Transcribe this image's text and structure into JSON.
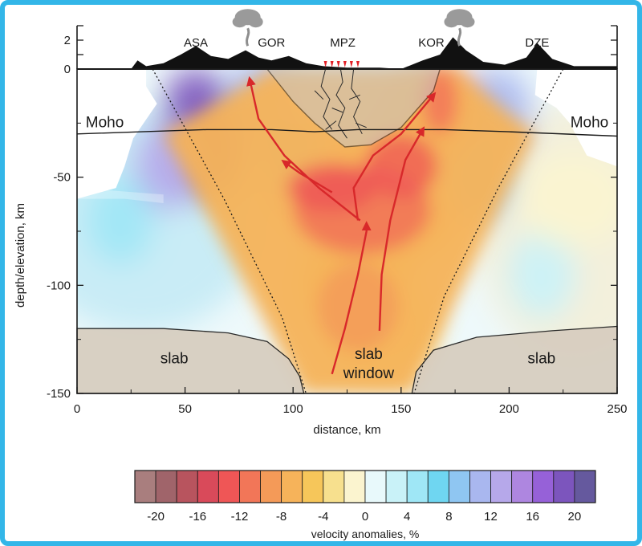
{
  "chart_data": {
    "type": "heatmap",
    "title": "",
    "xlabel": "distance, km",
    "ylabel": "depth/elevation, km",
    "xlim": [
      0,
      250
    ],
    "ylim": [
      -150,
      3
    ],
    "x_ticks": [
      0,
      50,
      100,
      150,
      200,
      250
    ],
    "y_ticks": [
      0,
      -50,
      -100,
      -150
    ],
    "topo_ticks": [
      0,
      2
    ],
    "stations": [
      {
        "name": "ASA",
        "x": 55
      },
      {
        "name": "GOR",
        "x": 90
      },
      {
        "name": "MPZ",
        "x": 123
      },
      {
        "name": "KOR",
        "x": 164
      },
      {
        "name": "DZE",
        "x": 213
      }
    ],
    "volcanoes": [
      {
        "x": 79
      },
      {
        "x": 177
      }
    ],
    "region_labels": {
      "moho_left": "Moho",
      "moho_right": "Moho",
      "slab_left": "slab",
      "slab_right": "slab",
      "window_line1": "slab",
      "window_line2": "window"
    },
    "moho_depth": [
      [
        0,
        -30
      ],
      [
        30,
        -29
      ],
      [
        60,
        -28
      ],
      [
        90,
        -28
      ],
      [
        110,
        -29
      ],
      [
        130,
        -28
      ],
      [
        150,
        -28
      ],
      [
        170,
        -28
      ],
      [
        200,
        -29
      ],
      [
        250,
        -31
      ]
    ],
    "slab_top": [
      [
        0,
        -120
      ],
      [
        40,
        -120
      ],
      [
        70,
        -122
      ],
      [
        88,
        -126
      ],
      [
        98,
        -134
      ],
      [
        103,
        -142
      ],
      [
        105,
        -150
      ],
      [
        155,
        -150
      ],
      [
        157,
        -140
      ],
      [
        165,
        -130
      ],
      [
        185,
        -124
      ],
      [
        220,
        -121
      ],
      [
        250,
        -119
      ]
    ],
    "colorbar": {
      "label": "velocity anomalies, %",
      "tick_labels": [
        "-20",
        "-16",
        "-12",
        "-8",
        "-4",
        "0",
        "4",
        "8",
        "12",
        "16",
        "20"
      ],
      "tick_values": [
        -20,
        -16,
        -12,
        -8,
        -4,
        0,
        4,
        8,
        12,
        16,
        20
      ],
      "range": [
        -22,
        22
      ],
      "step": 2,
      "colors": [
        "#a97e7e",
        "#a0646a",
        "#b8545e",
        "#d94a5a",
        "#ef5656",
        "#f27658",
        "#f49a58",
        "#f6b35a",
        "#f6c65a",
        "#f7e08e",
        "#fbf4cf",
        "#e8f9fb",
        "#c9f2f8",
        "#9fe7f6",
        "#6fd6f1",
        "#8fc6f2",
        "#a9b7ef",
        "#b6a8ea",
        "#ae86e0",
        "#9661d8",
        "#7c55bd",
        "#65599e"
      ]
    },
    "anomaly_blobs": [
      {
        "x": 135,
        "y": -72,
        "value": -5
      },
      {
        "x": 150,
        "y": -65,
        "value": -7
      },
      {
        "x": 125,
        "y": -62,
        "value": -7
      },
      {
        "x": 115,
        "y": -52,
        "value": -10
      },
      {
        "x": 140,
        "y": -55,
        "value": -10
      },
      {
        "x": 158,
        "y": -38,
        "value": -8
      },
      {
        "x": 168,
        "y": -22,
        "value": -10
      },
      {
        "x": 130,
        "y": -100,
        "value": -5
      },
      {
        "x": 140,
        "y": -120,
        "value": -4
      },
      {
        "x": 55,
        "y": -20,
        "value": 18
      },
      {
        "x": 62,
        "y": -40,
        "value": 18
      },
      {
        "x": 42,
        "y": -45,
        "value": 12
      },
      {
        "x": 85,
        "y": -15,
        "value": 10
      },
      {
        "x": 100,
        "y": -40,
        "value": 8
      },
      {
        "x": 195,
        "y": -20,
        "value": 10
      },
      {
        "x": 185,
        "y": -50,
        "value": 8
      },
      {
        "x": 20,
        "y": -70,
        "value": 5
      },
      {
        "x": 215,
        "y": -95,
        "value": 2
      },
      {
        "x": 230,
        "y": -60,
        "value": -2
      }
    ]
  }
}
